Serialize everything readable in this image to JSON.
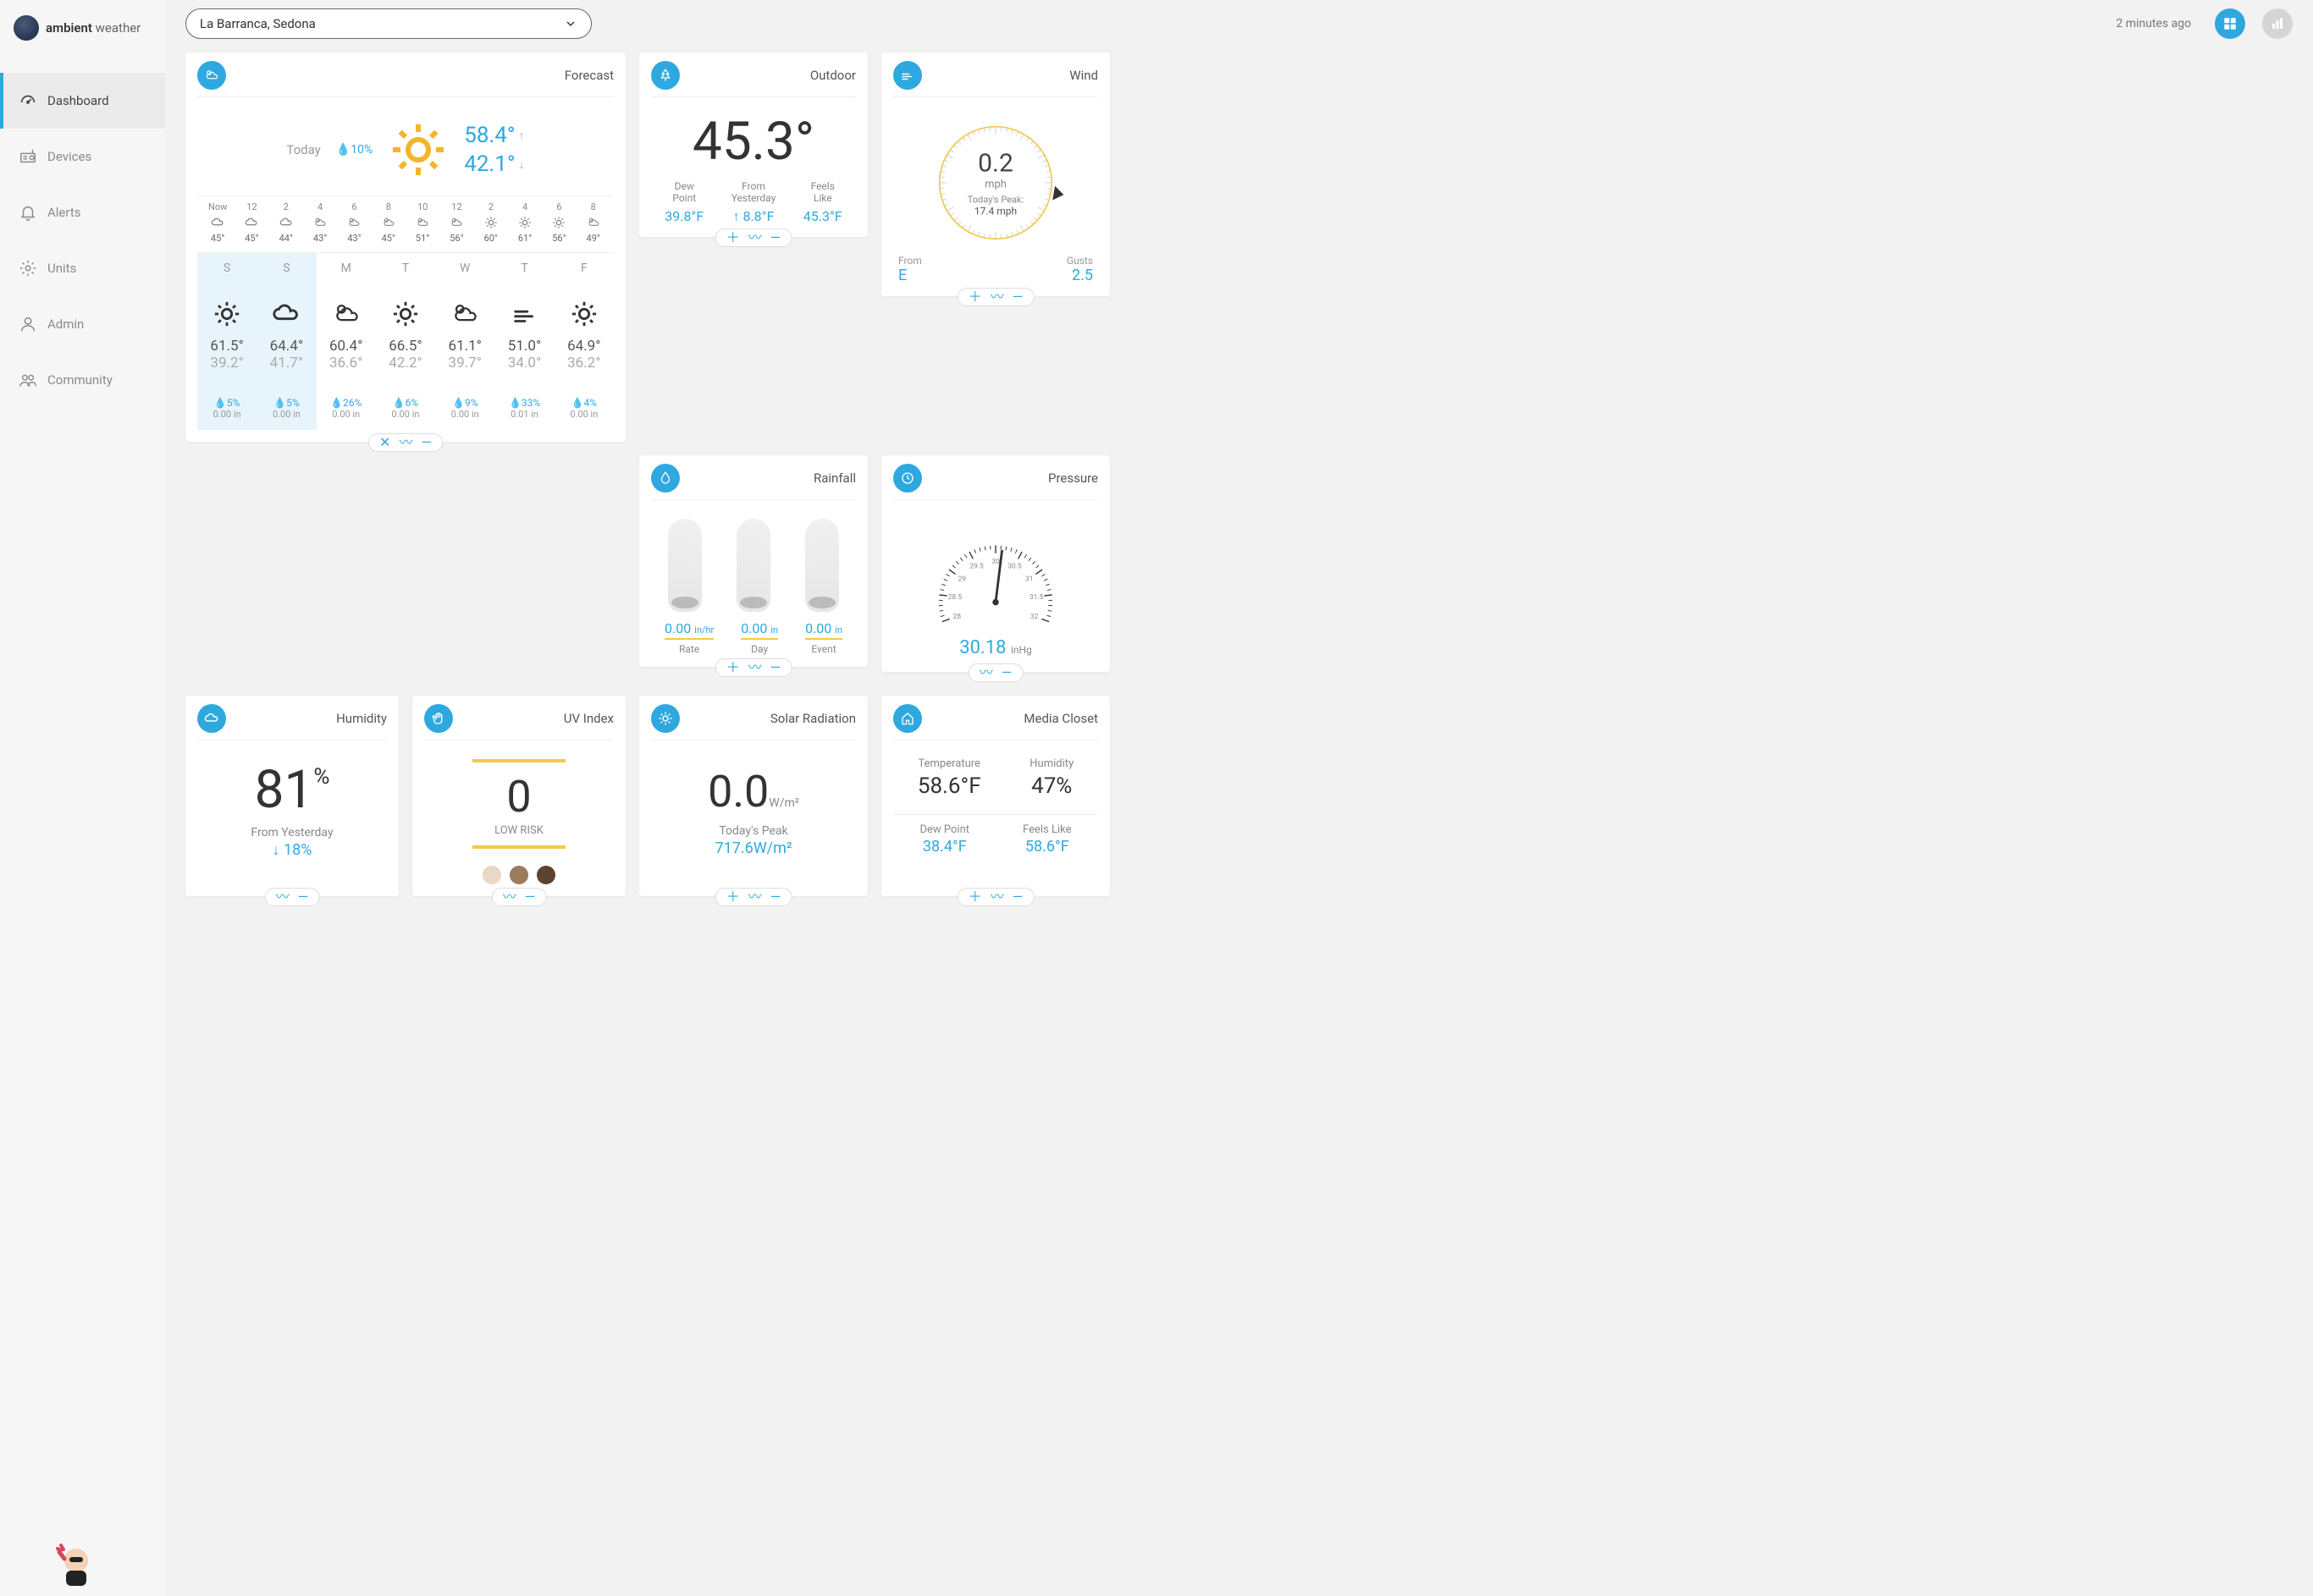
{
  "brand": {
    "name1": "ambient",
    "name2": "weather"
  },
  "location": "La Barranca, Sedona",
  "last_update": "2 minutes ago",
  "nav": {
    "dashboard": "Dashboard",
    "devices": "Devices",
    "alerts": "Alerts",
    "units": "Units",
    "admin": "Admin",
    "community": "Community"
  },
  "colors": {
    "accent": "#2fa8e0",
    "sun": "#f3b52a",
    "text_muted": "#8a8a8a",
    "card_bg": "#ffffff",
    "page_bg": "#f2f2f2",
    "highlight_day_bg": "#e8f4fb",
    "gold_bar": "#f3c948"
  },
  "forecast": {
    "title": "Forecast",
    "today_label": "Today",
    "today_rain": "10%",
    "today_hi": "58.4°",
    "today_lo": "42.1°",
    "hourly": [
      {
        "h": "Now",
        "icon": "cloud",
        "t": "45°"
      },
      {
        "h": "12",
        "icon": "cloud",
        "t": "45°"
      },
      {
        "h": "2",
        "icon": "cloud",
        "t": "44°"
      },
      {
        "h": "4",
        "icon": "partly",
        "t": "43°"
      },
      {
        "h": "6",
        "icon": "partly",
        "t": "43°"
      },
      {
        "h": "8",
        "icon": "partly",
        "t": "45°"
      },
      {
        "h": "10",
        "icon": "partly",
        "t": "51°"
      },
      {
        "h": "12",
        "icon": "partly",
        "t": "56°"
      },
      {
        "h": "2",
        "icon": "sun",
        "t": "60°"
      },
      {
        "h": "4",
        "icon": "sun",
        "t": "61°"
      },
      {
        "h": "6",
        "icon": "sun",
        "t": "56°"
      },
      {
        "h": "8",
        "icon": "partly",
        "t": "49°"
      }
    ],
    "daily": [
      {
        "d": "S",
        "icon": "sun",
        "hi": "61.5°",
        "lo": "39.2°",
        "rain": "5%",
        "accum": "0.00 in",
        "hl": true
      },
      {
        "d": "S",
        "icon": "cloud",
        "hi": "64.4°",
        "lo": "41.7°",
        "rain": "5%",
        "accum": "0.00 in",
        "hl": true
      },
      {
        "d": "M",
        "icon": "partly",
        "hi": "60.4°",
        "lo": "36.6°",
        "rain": "26%",
        "accum": "0.00 in",
        "hl": false
      },
      {
        "d": "T",
        "icon": "sun",
        "hi": "66.5°",
        "lo": "42.2°",
        "rain": "6%",
        "accum": "0.00 in",
        "hl": false
      },
      {
        "d": "W",
        "icon": "partly",
        "hi": "61.1°",
        "lo": "39.7°",
        "rain": "9%",
        "accum": "0.00 in",
        "hl": false
      },
      {
        "d": "T",
        "icon": "wind",
        "hi": "51.0°",
        "lo": "34.0°",
        "rain": "33%",
        "accum": "0.01 in",
        "hl": false
      },
      {
        "d": "F",
        "icon": "sun",
        "hi": "64.9°",
        "lo": "36.2°",
        "rain": "4%",
        "accum": "0.00 in",
        "hl": false
      }
    ]
  },
  "outdoor": {
    "title": "Outdoor",
    "temp": "45.3°",
    "dew_label": "Dew\nPoint",
    "dew_val": "39.8°F",
    "yest_label": "From\nYesterday",
    "yest_val": "↑ 8.8°F",
    "feels_label": "Feels\nLike",
    "feels_val": "45.3°F"
  },
  "wind": {
    "title": "Wind",
    "speed": "0.2",
    "unit": "mph",
    "peak_label": "Today's Peak:",
    "peak_val": "17.4 mph",
    "from_label": "From",
    "from_val": "E",
    "gusts_label": "Gusts",
    "gusts_val": "2.5",
    "direction_deg": 100
  },
  "rainfall": {
    "title": "Rainfall",
    "items": [
      {
        "val": "0.00",
        "unit": "in/hr",
        "label": "Rate"
      },
      {
        "val": "0.00",
        "unit": "in",
        "label": "Day"
      },
      {
        "val": "0.00",
        "unit": "in",
        "label": "Event"
      }
    ]
  },
  "pressure": {
    "title": "Pressure",
    "value": "30.18",
    "unit": "inHg",
    "ticks": [
      "28",
      "28.5",
      "29",
      "29.5",
      "30",
      "30.5",
      "31",
      "31.5",
      "32"
    ]
  },
  "humidity": {
    "title": "Humidity",
    "value": "81",
    "unit": "%",
    "sub": "From Yesterday",
    "delta": "↓ 18%"
  },
  "uv": {
    "title": "UV Index",
    "value": "0",
    "label": "LOW RISK",
    "dot_colors": [
      "#e8d8c5",
      "#9c7a5c",
      "#5c4330"
    ]
  },
  "solar": {
    "title": "Solar Radiation",
    "value": "0.0",
    "unit": "W/m²",
    "sub": "Today's Peak",
    "peak": "717.6W/m²"
  },
  "media": {
    "title": "Media Closet",
    "temp_label": "Temperature",
    "temp_val": "58.6°F",
    "hum_label": "Humidity",
    "hum_val": "47%",
    "dew_label": "Dew Point",
    "dew_val": "38.4°F",
    "feels_label": "Feels Like",
    "feels_val": "58.6°F"
  }
}
